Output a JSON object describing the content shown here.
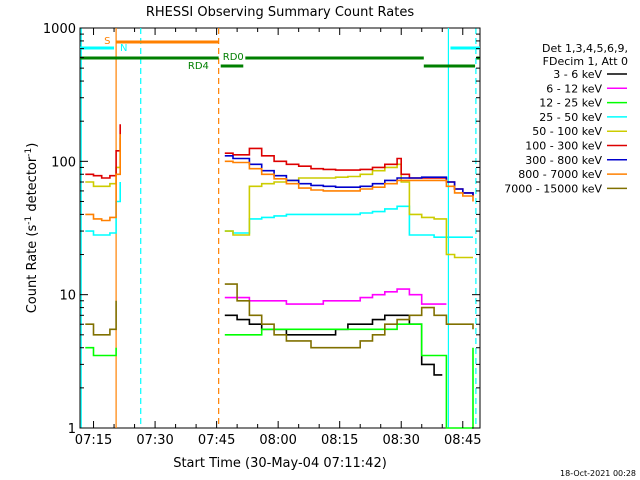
{
  "chart_data": {
    "type": "line",
    "title": "RHESSI Observing Summary Count Rates",
    "xlabel": "Start Time (30-May-04 07:11:42)",
    "ylabel_main": "Count Rate (s",
    "ylabel_sup1": "-1",
    "ylabel_mid": " detector",
    "ylabel_sup2": "-1",
    "ylabel_end": ")",
    "y_scale": "log",
    "ylim": [
      1,
      1000
    ],
    "xlim_minutes": [
      71.7,
      169.2
    ],
    "x_tick_labels": [
      "07:15",
      "07:30",
      "07:45",
      "08:00",
      "08:15",
      "08:30",
      "08:45"
    ],
    "x_tick_minutes": [
      75,
      90,
      105,
      120,
      135,
      150,
      165
    ],
    "y_tick_labels": [
      "1",
      "10",
      "100",
      "1000"
    ],
    "y_tick_values": [
      1,
      10,
      100,
      1000
    ],
    "legend_header": [
      "Det 1,3,4,5,6,9,",
      "FDecim 1, Att 0"
    ],
    "legend_placement": "right",
    "footer": "18-Oct-2021 00:28",
    "annotations": {
      "S": {
        "label": "S",
        "color": "#ff8000",
        "start": 80.5,
        "end": 105.5
      },
      "N": {
        "label": "N",
        "color": "#00ffff",
        "start": 71.7,
        "end": 80.0,
        "start2": 162.0,
        "end2": 169.2
      },
      "RD0": {
        "label": "RD0",
        "color": "#007f00",
        "start": 71.7,
        "end": 169.2
      },
      "RD4": {
        "label": "RD4",
        "color": "#007f00",
        "start": 105.5,
        "end": 169.2
      }
    },
    "vertical_lines": [
      {
        "x": 80.5,
        "color": "#ff8000",
        "style": "solid"
      },
      {
        "x": 86.5,
        "color": "#00ffff",
        "style": "dashed"
      },
      {
        "x": 105.5,
        "color": "#ff8000",
        "style": "dashed"
      },
      {
        "x": 72.0,
        "color": "#00ffff",
        "style": "solid"
      },
      {
        "x": 161.5,
        "color": "#00ffff",
        "style": "solid"
      },
      {
        "x": 168.2,
        "color": "#00ffff",
        "style": "dashed"
      }
    ],
    "series": [
      {
        "name": "3 - 6 keV",
        "color": "#000000",
        "x": [
          107,
          110,
          113,
          116,
          119,
          122,
          125,
          128,
          131,
          134,
          137,
          140,
          143,
          146,
          149,
          152,
          155,
          158,
          160
        ],
        "y": [
          7,
          6.5,
          6,
          5.5,
          5.5,
          5,
          5,
          5,
          5,
          5.5,
          6,
          6,
          6.5,
          7,
          7,
          6,
          3,
          2.5,
          2.5
        ]
      },
      {
        "name": "6 - 12 keV",
        "color": "#ff00ff",
        "x": [
          107,
          110,
          113,
          116,
          119,
          122,
          125,
          128,
          131,
          134,
          137,
          140,
          143,
          146,
          149,
          152,
          155,
          158,
          161
        ],
        "y": [
          9.5,
          9.5,
          9,
          9,
          9,
          8.5,
          8.5,
          8.5,
          9,
          9,
          9,
          9.5,
          10,
          10.5,
          11,
          10,
          8.5,
          8.5,
          8.5
        ]
      },
      {
        "name": "12 - 25 keV",
        "color": "#00ff00",
        "x": [
          73,
          75,
          77,
          79,
          80.5,
          107,
          110,
          113,
          116,
          119,
          122,
          125,
          128,
          131,
          134,
          137,
          140,
          143,
          146,
          149,
          152,
          155,
          158,
          161,
          163,
          165,
          167.5
        ],
        "y": [
          4,
          3.5,
          3.5,
          3.5,
          4,
          5,
          5,
          5,
          5.5,
          5.5,
          5.5,
          5.5,
          5.5,
          5.5,
          5.5,
          5.5,
          5.5,
          5.5,
          5.5,
          6,
          6,
          3.5,
          3.5,
          1,
          1,
          1,
          4
        ]
      },
      {
        "name": "25 - 50 keV",
        "color": "#00ffff",
        "x": [
          73,
          75,
          77,
          79,
          80.5,
          81.5,
          107,
          109,
          113,
          116,
          119,
          122,
          125,
          128,
          131,
          134,
          137,
          140,
          143,
          146,
          149,
          150,
          152,
          155,
          158,
          161,
          163,
          165,
          167.5
        ],
        "y": [
          30,
          28,
          28,
          29,
          50,
          70,
          30,
          29,
          37,
          38,
          39,
          40,
          40,
          40,
          40,
          40,
          40,
          41,
          42,
          44,
          46,
          46,
          28,
          28,
          27,
          27,
          27,
          27,
          27
        ]
      },
      {
        "name": "50 - 100 keV",
        "color": "#cccc00",
        "x": [
          73,
          75,
          77,
          79,
          80.5,
          81.5,
          107,
          109,
          113,
          116,
          119,
          122,
          125,
          128,
          131,
          134,
          137,
          140,
          143,
          146,
          149,
          150,
          152,
          155,
          158,
          161,
          163,
          165,
          167.5
        ],
        "y": [
          70,
          65,
          65,
          68,
          90,
          150,
          30,
          28,
          65,
          68,
          70,
          72,
          75,
          75,
          75,
          76,
          77,
          80,
          85,
          90,
          95,
          70,
          40,
          38,
          37,
          20,
          19,
          19,
          19
        ]
      },
      {
        "name": "100 - 300 keV",
        "color": "#dd0000",
        "x": [
          73,
          75,
          77,
          79,
          80.5,
          81.5,
          107,
          109,
          113,
          116,
          119,
          122,
          125,
          128,
          131,
          134,
          137,
          140,
          143,
          146,
          149,
          150,
          152,
          155,
          158,
          161,
          163,
          165,
          167.5
        ],
        "y": [
          80,
          78,
          75,
          78,
          120,
          190,
          115,
          112,
          125,
          110,
          100,
          95,
          92,
          88,
          87,
          86,
          86,
          87,
          90,
          95,
          105,
          80,
          75,
          75,
          75,
          70,
          62,
          58,
          55
        ]
      },
      {
        "name": "300 - 800 keV",
        "color": "#0000cc",
        "x": [
          107,
          109,
          113,
          116,
          119,
          122,
          125,
          128,
          131,
          134,
          137,
          140,
          143,
          146,
          149,
          150,
          152,
          155,
          158,
          161,
          163,
          165,
          167.5
        ],
        "y": [
          110,
          105,
          95,
          85,
          78,
          72,
          68,
          66,
          65,
          64,
          64,
          65,
          68,
          72,
          75,
          75,
          75,
          76,
          76,
          70,
          62,
          58,
          55
        ]
      },
      {
        "name": "800 - 7000 keV",
        "color": "#ff8000",
        "x": [
          73,
          75,
          77,
          79,
          80.5,
          81.5,
          107,
          109,
          113,
          116,
          119,
          122,
          125,
          128,
          131,
          134,
          137,
          140,
          143,
          146,
          149,
          150,
          152,
          155,
          158,
          161,
          163,
          165,
          167.5
        ],
        "y": [
          40,
          37,
          36,
          38,
          80,
          160,
          100,
          98,
          88,
          80,
          74,
          68,
          63,
          61,
          60,
          60,
          60,
          62,
          64,
          68,
          72,
          72,
          72,
          72,
          72,
          65,
          58,
          55,
          50
        ]
      },
      {
        "name": "7000 - 15000 keV",
        "color": "#807000",
        "x": [
          73,
          75,
          77,
          79,
          80.5,
          107,
          110,
          113,
          116,
          119,
          122,
          125,
          128,
          131,
          134,
          137,
          140,
          143,
          146,
          149,
          152,
          155,
          158,
          161,
          163,
          165,
          167.5
        ],
        "y": [
          6,
          5,
          5,
          5.5,
          9,
          12,
          9,
          7,
          6,
          5,
          4.5,
          4.5,
          4,
          4,
          4,
          4,
          4.5,
          5,
          6,
          6.5,
          7,
          8,
          7,
          6,
          6,
          6,
          5.5
        ]
      }
    ]
  }
}
